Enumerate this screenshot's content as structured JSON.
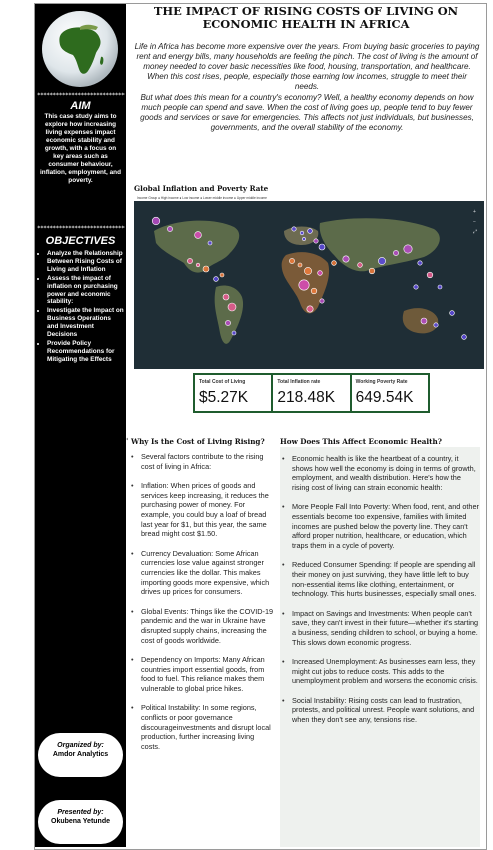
{
  "title": "THE IMPACT OF RISING COSTS OF LIVING ON ECONOMIC HEALTH IN AFRICA",
  "intro": [
    "Life in Africa has become more expensive over the years. From buying basic groceries to paying rent and energy bills, many households are feeling the pinch. The cost of living is the amount of money needed to cover basic necessities like food, housing, transportation, and healthcare. When this cost rises, people, especially those earning low incomes, struggle to meet their needs.",
    "But what does this mean for a country's economy? Well, a healthy economy depends on how much people can spend and save. When the cost of living goes up, people tend to buy fewer goods and services or save for emergencies. This affects not just individuals, but businesses, governments, and the overall stability of the economy."
  ],
  "sidebar": {
    "stars": "******************************",
    "aim_title": "AIM",
    "aim_text": "This case study aims to explore how increasing living expenses impact economic stability and growth, with a focus on key areas such as consumer behaviour, inflation, employment, and poverty.",
    "objectives_title": "OBJECTIVES",
    "objectives": [
      "Analyze the Relationship Between Rising Costs of Living and Inflation",
      "Assess the impact of inflation on purchasing power and economic stability:",
      "Investigate the Impact on Business Operations and Investment Decisions",
      "Provide Policy Recommendations for Mitigating the Effects"
    ],
    "organized_label": "Organized by:",
    "organized_name": "Amdor Analytics",
    "presented_label": "Presented by:",
    "presented_name": "Okubena Yetunde"
  },
  "map": {
    "title": "Global Inflation and Poverty Rate",
    "legend": "Income Group   ● High income   ● Low income   ● Lower middle income   ● Upper middle income"
  },
  "kpis": [
    {
      "label": "Total Cost of Living",
      "value": "$5.27K"
    },
    {
      "label": "Total Inflation rate",
      "value": "218.48K"
    },
    {
      "label": "Working Poverty Rate",
      "value": "649.54K"
    }
  ],
  "col1": {
    "heading": "Why Is the Cost of Living Rising?",
    "items": [
      "Several factors contribute to the rising cost of living in Africa:",
      "Inflation: When prices of goods and services keep increasing, it reduces the purchasing power of money. For example, you could buy a loaf of bread last year for $1, but this year, the same bread might cost $1.50.",
      " Currency Devaluation: Some African currencies lose value against stronger currencies like the dollar. This makes importing goods more expensive, which drives up prices for consumers.",
      " Global Events: Things like the COVID-19 pandemic and the war in Ukraine have disrupted supply chains, increasing the cost of goods worldwide.",
      "Dependency on Imports: Many African countries import essential goods, from food to fuel. This reliance makes them vulnerable to global price hikes.",
      "Political Instability: In some regions, conflicts or poor governance discourageinvestments and disrupt local production, further increasing living costs."
    ]
  },
  "col2": {
    "heading": "How Does This Affect Economic Health?",
    "items": [
      "Economic health is like the heartbeat of a country, it shows how well the economy is doing in terms of growth, employment, and wealth distribution. Here's how the rising cost of living can strain economic health:",
      "More People Fall Into Poverty: When food, rent, and other essentials become too expensive, families with limited incomes are pushed below the poverty line. They can't afford proper nutrition, healthcare, or education, which traps them in a cycle of poverty.",
      "Reduced Consumer Spending: If people are spending all their money on just surviving, they have little left to buy non-essential items like clothing, entertainment, or technology. This hurts businesses, especially small ones.",
      "Impact on Savings and Investments: When people can't save, they can't invest in their future—whether it's starting a business, sending children to school, or buying a home. This slows down economic progress.",
      "Increased Unemployment: As businesses earn less, they might cut jobs to reduce costs. This adds to the unemployment problem and worsens the economic crisis.",
      "Social Instability: Rising costs can lead to frustration, protests, and political unrest. People want solutions, and when they don't see any, tensions rise."
    ]
  }
}
